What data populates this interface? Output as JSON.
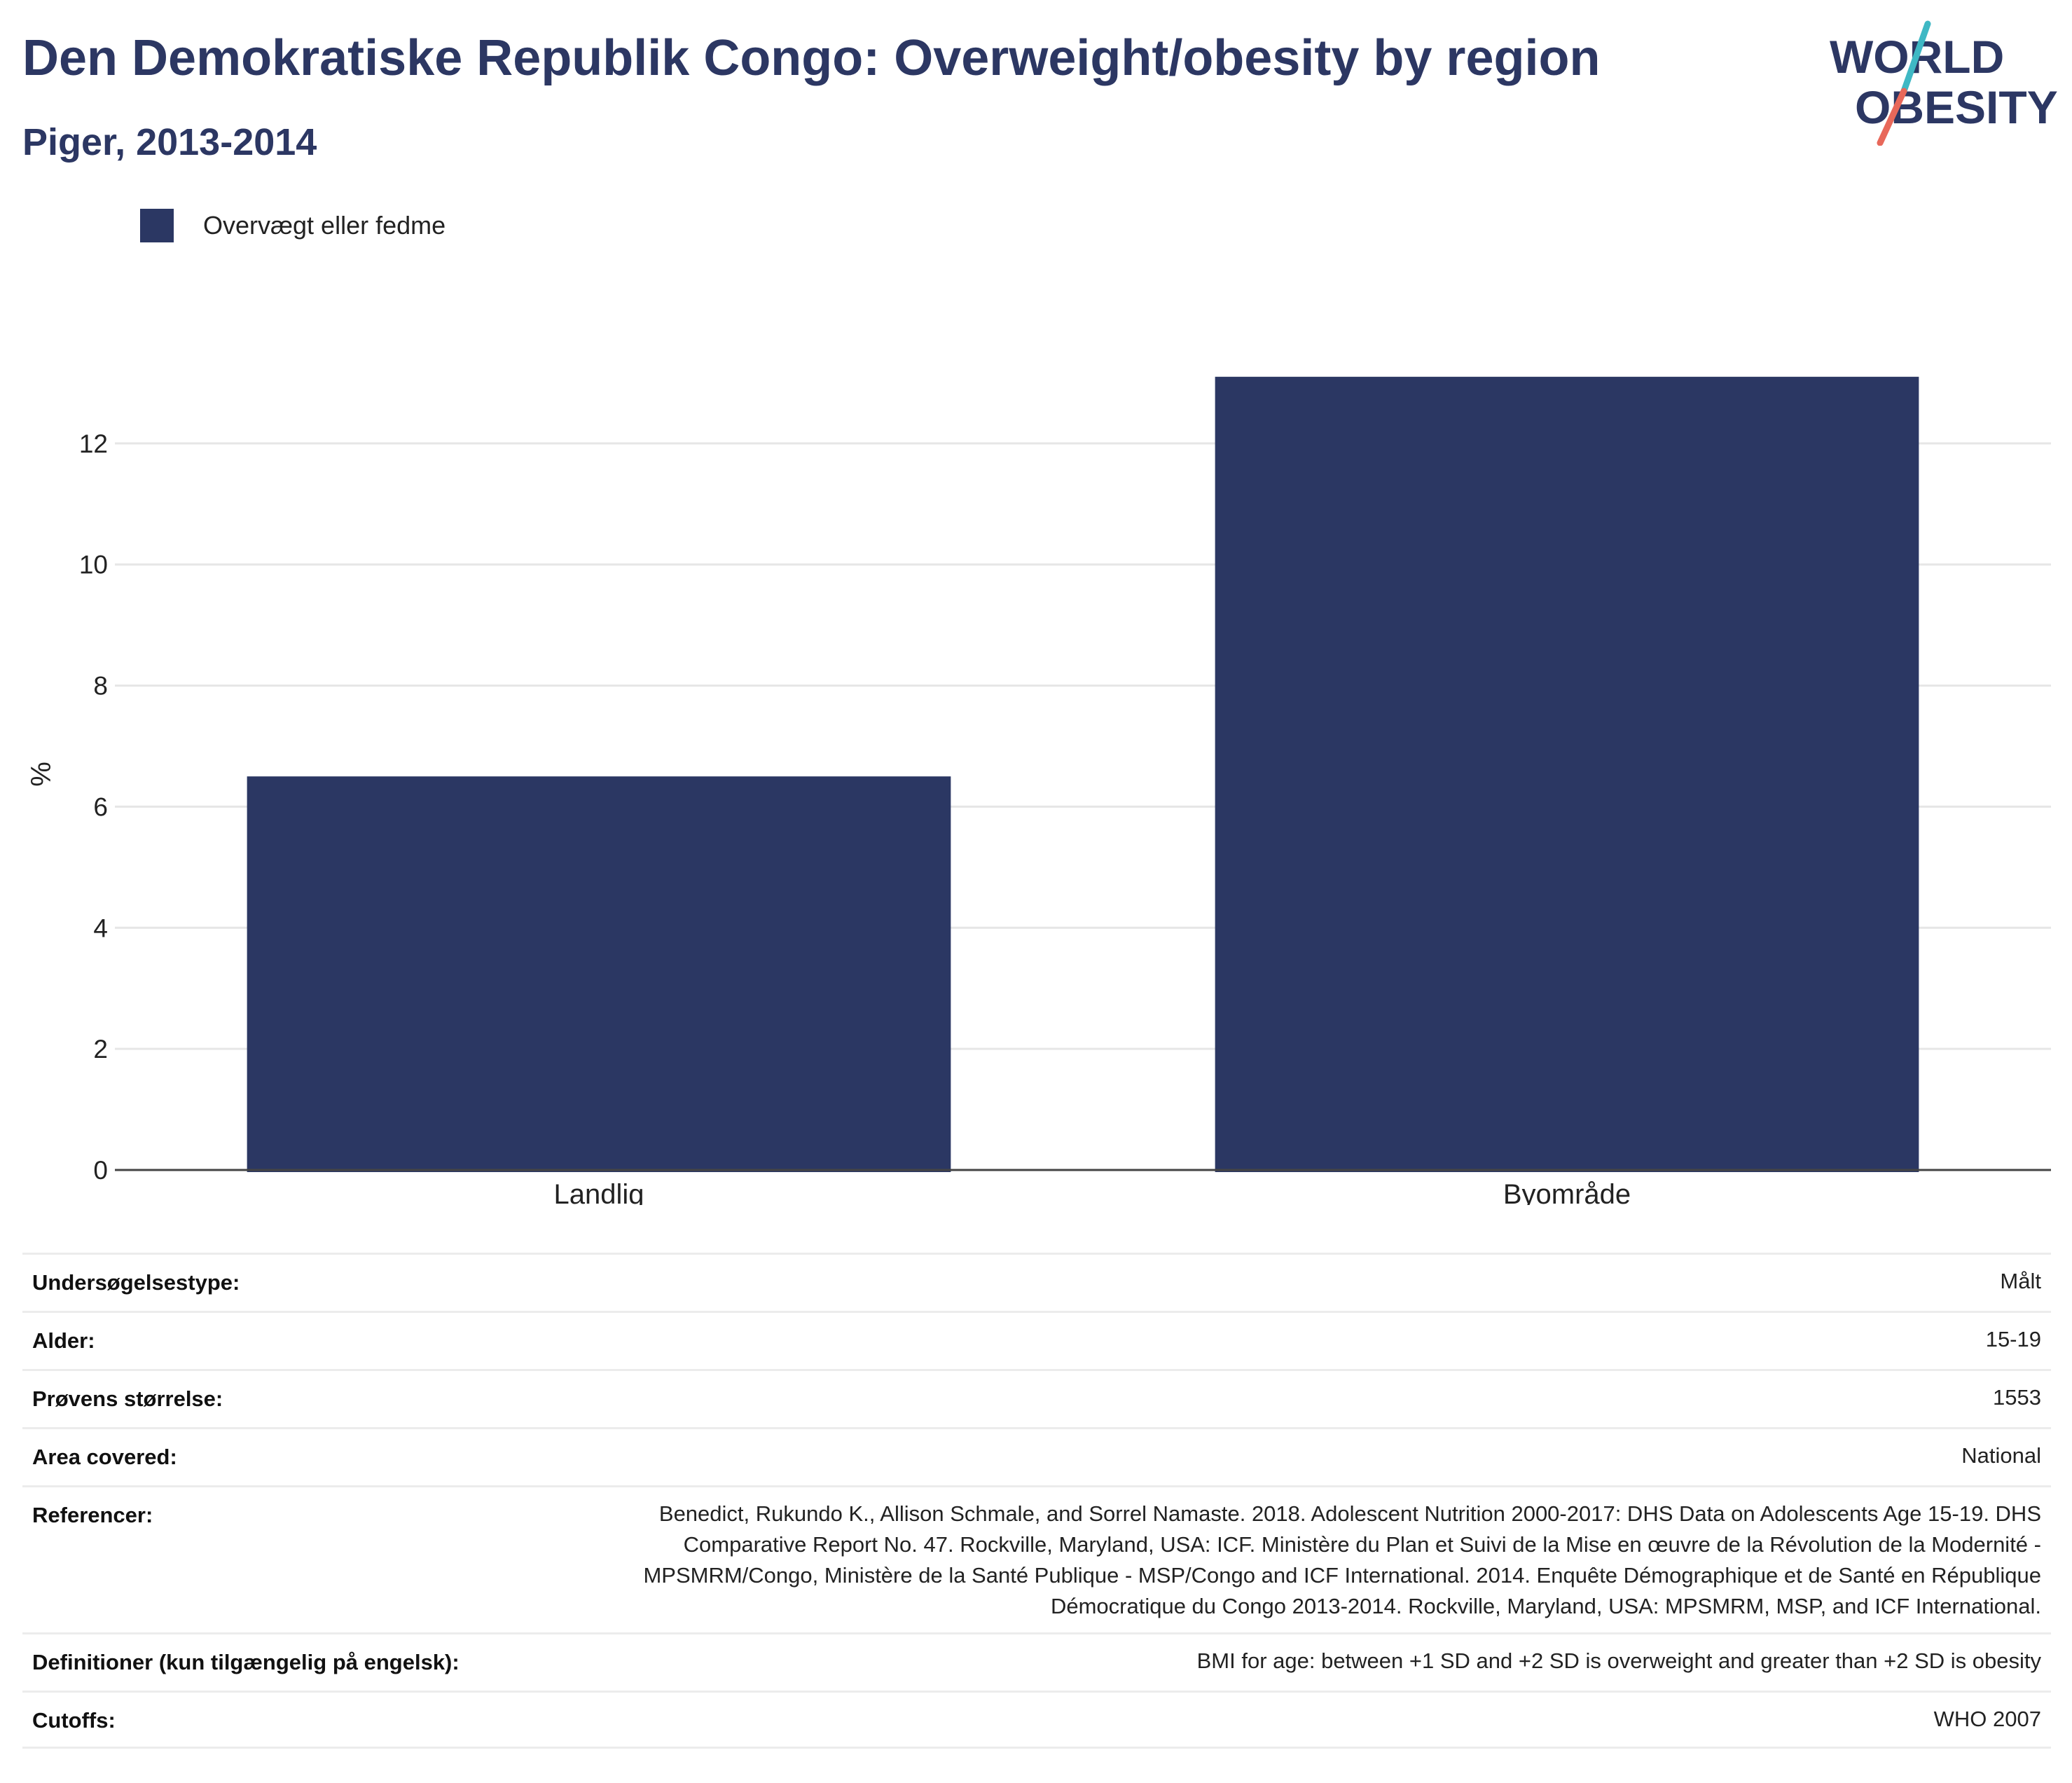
{
  "header": {
    "title": "Den Demokratiske Republik Congo: Overweight/obesity by region",
    "subtitle": "Piger, 2013-2014"
  },
  "logo": {
    "line1": "WORLD",
    "line2": "OBESITY",
    "colors": {
      "text": "#2c3763",
      "slash_top": "#3fb8c4",
      "slash_bottom": "#e8685a"
    }
  },
  "colors": {
    "bar": "#2b3763",
    "grid": "#e6e6e6",
    "axis": "#444444"
  },
  "chart_data": {
    "type": "bar",
    "categories": [
      "Landlig",
      "Byområde"
    ],
    "series": [
      {
        "name": "Overvægt eller fedme",
        "values": [
          6.5,
          13.1
        ]
      }
    ],
    "ylabel": "%",
    "xlabel": "",
    "ylim": [
      0,
      14
    ],
    "yticks": [
      0,
      2,
      4,
      6,
      8,
      10,
      12
    ],
    "grid": true,
    "legend_position": "top-left"
  },
  "meta": [
    {
      "label": "Undersøgelsestype:",
      "value": "Målt"
    },
    {
      "label": "Alder:",
      "value": "15-19"
    },
    {
      "label": "Prøvens størrelse:",
      "value": "1553"
    },
    {
      "label": "Area covered:",
      "value": "National"
    },
    {
      "label": "Referencer:",
      "value": "Benedict, Rukundo K., Allison Schmale, and Sorrel Namaste. 2018. Adolescent Nutrition 2000-2017: DHS Data on Adolescents Age 15-19. DHS Comparative Report No. 47. Rockville, Maryland, USA: ICF. Ministère du Plan et Suivi de la Mise en œuvre de la Révolution de la Modernité - MPSMRM/Congo, Ministère de la Santé Publique - MSP/Congo and ICF International. 2014. Enquête Démographique et de Santé en République Démocratique du Congo 2013-2014. Rockville, Maryland, USA: MPSMRM, MSP, and ICF International."
    },
    {
      "label": "Definitioner (kun tilgængelig på engelsk):",
      "value": "BMI for age: between +1 SD and +2 SD is overweight and greater than +2 SD is obesity"
    },
    {
      "label": "Cutoffs:",
      "value": "WHO 2007"
    }
  ]
}
